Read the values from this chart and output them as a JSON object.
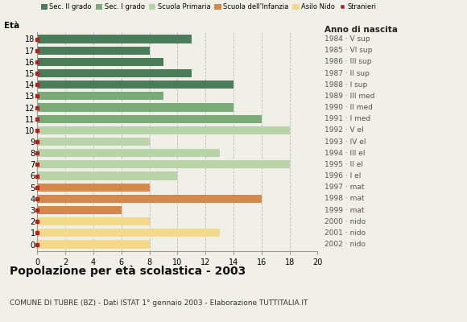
{
  "title": "Popolazione per età scolastica - 2003",
  "subtitle": "COMUNE DI TUBRE (BZ) - Dati ISTAT 1° gennaio 2003 - Elaborazione TUTTITALIA.IT",
  "label_left": "Età",
  "label_right": "Anno di nascita",
  "ages": [
    18,
    17,
    16,
    15,
    14,
    13,
    12,
    11,
    10,
    9,
    8,
    7,
    6,
    5,
    4,
    3,
    2,
    1,
    0
  ],
  "values": [
    11,
    8,
    9,
    11,
    14,
    9,
    14,
    16,
    18,
    8,
    13,
    18,
    10,
    8,
    16,
    6,
    8,
    13,
    8
  ],
  "years": [
    "1984 · V sup",
    "1985 · VI sup",
    "1986 · III sup",
    "1987 · II sup",
    "1988 · I sup",
    "1989 · III med",
    "1990 · II med",
    "1991 · I med",
    "1992 · V el",
    "1993 · IV el",
    "1994 · III el",
    "1995 · II el",
    "1996 · I el",
    "1997 · mat",
    "1998 · mat",
    "1999 · mat",
    "2000 · nido",
    "2001 · nido",
    "2002 · nido"
  ],
  "bar_colors": [
    "#4a7c59",
    "#4a7c59",
    "#4a7c59",
    "#4a7c59",
    "#4a7c59",
    "#7aab78",
    "#7aab78",
    "#7aab78",
    "#b8d4a8",
    "#b8d4a8",
    "#b8d4a8",
    "#b8d4a8",
    "#b8d4a8",
    "#d4884a",
    "#d4884a",
    "#d4884a",
    "#f5d98b",
    "#f5d98b",
    "#f5d98b"
  ],
  "stranieri_color": "#b22222",
  "legend_labels": [
    "Sec. II grado",
    "Sec. I grado",
    "Scuola Primaria",
    "Scuola dell'Infanzia",
    "Asilo Nido",
    "Stranieri"
  ],
  "legend_colors": [
    "#4a7c59",
    "#7aab78",
    "#b8d4a8",
    "#d4884a",
    "#f5d98b",
    "#b22222"
  ],
  "xlim": [
    0,
    20
  ],
  "xticks": [
    0,
    2,
    4,
    6,
    8,
    10,
    12,
    14,
    16,
    18,
    20
  ],
  "background_color": "#f0f0e8",
  "grid_color": "#bbbbbb"
}
